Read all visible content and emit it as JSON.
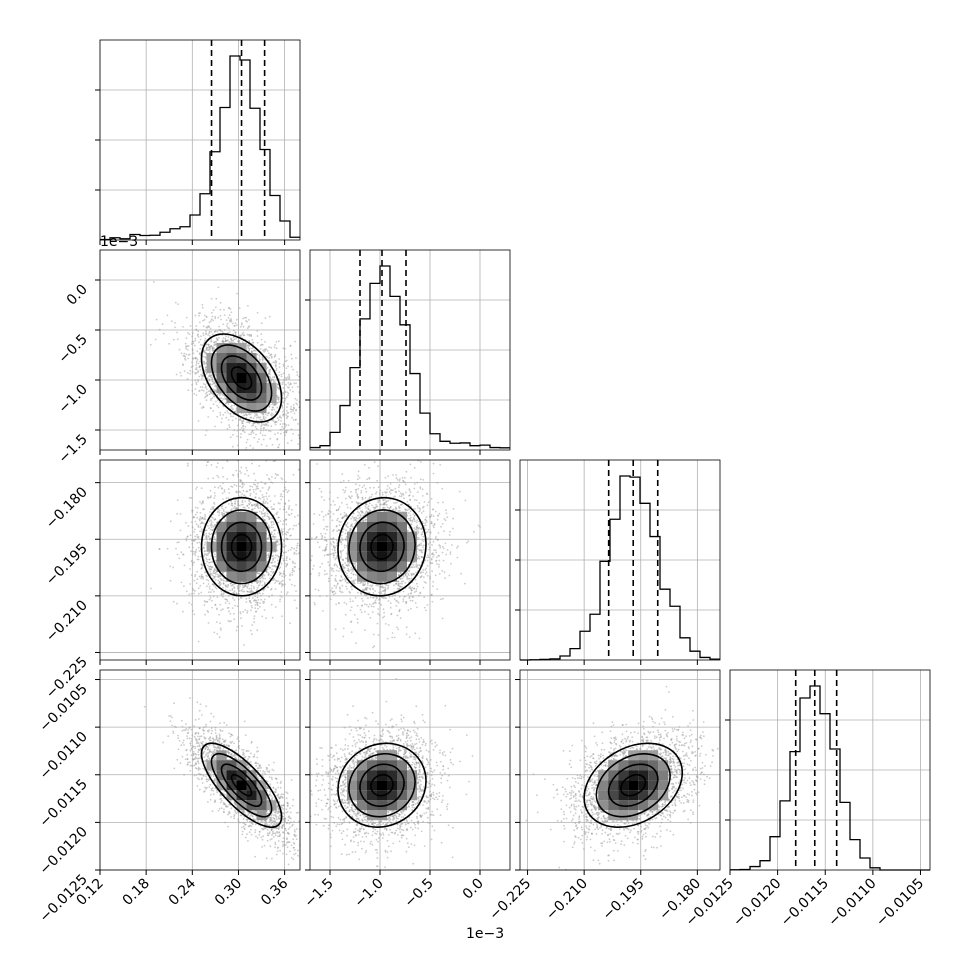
{
  "chart_data": {
    "type": "corner",
    "grid": true,
    "n_params": 4,
    "params": [
      {
        "index": 0,
        "range": [
          0.12,
          0.38
        ],
        "ticks": [
          0.12,
          0.18,
          0.24,
          0.3,
          0.36
        ],
        "tick_labels": [
          "0.12",
          "0.18",
          "0.24",
          "0.30",
          "0.36"
        ],
        "quantiles": [
          0.265,
          0.304,
          0.334
        ],
        "median": 0.304,
        "sigma": 0.026
      },
      {
        "index": 1,
        "offset_label": "1e−3",
        "range": [
          -1.7,
          0.3
        ],
        "ticks": [
          -1.5,
          -1.0,
          -0.5,
          0.0
        ],
        "tick_labels": [
          "−1.5",
          "−1.0",
          "−0.5",
          "0.0"
        ],
        "quantiles": [
          -1.2,
          -0.98,
          -0.74
        ],
        "median": -0.98,
        "sigma": 0.22
      },
      {
        "index": 2,
        "range": [
          -0.227,
          -0.174
        ],
        "ticks": [
          -0.225,
          -0.21,
          -0.195,
          -0.18
        ],
        "tick_labels": [
          "−0.225",
          "−0.210",
          "−0.195",
          "−0.180"
        ],
        "quantiles": [
          -0.2035,
          -0.197,
          -0.1905
        ],
        "median": -0.197,
        "sigma": 0.0065
      },
      {
        "index": 3,
        "range": [
          -0.0125,
          -0.0104
        ],
        "ticks": [
          -0.0125,
          -0.012,
          -0.0115,
          -0.011,
          -0.0105
        ],
        "tick_labels": [
          "−0.0125",
          "−0.0120",
          "−0.0115",
          "−0.0110",
          "−0.0105"
        ],
        "quantiles": [
          -0.01181,
          -0.01161,
          -0.01138
        ],
        "median": -0.01161,
        "sigma": 0.00022
      }
    ],
    "correlations": [
      {
        "pair": [
          1,
          0
        ],
        "rho": -0.45
      },
      {
        "pair": [
          2,
          0
        ],
        "rho": 0.0
      },
      {
        "pair": [
          2,
          1
        ],
        "rho": 0.05
      },
      {
        "pair": [
          3,
          0
        ],
        "rho": -0.75
      },
      {
        "pair": [
          3,
          1
        ],
        "rho": 0.1
      },
      {
        "pair": [
          3,
          2
        ],
        "rho": 0.3
      }
    ],
    "colors": {
      "contour": "#000000",
      "density": "#000000",
      "points": "#999999",
      "grid": "#b0b0b0"
    }
  }
}
